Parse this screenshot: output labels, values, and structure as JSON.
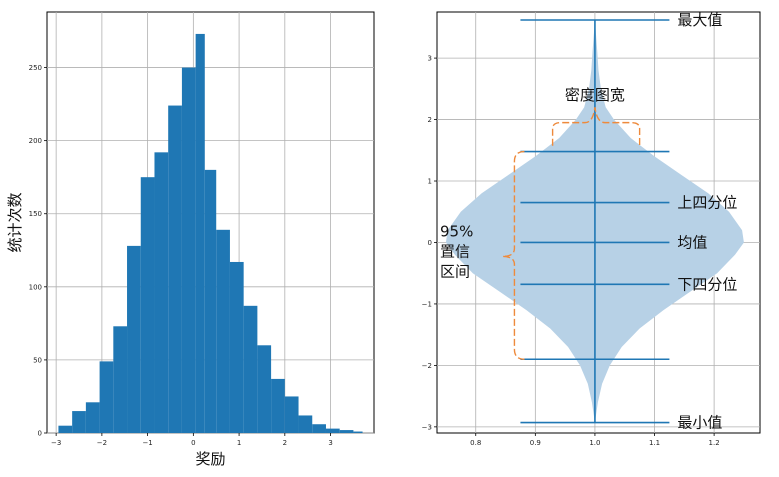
{
  "chart_data": [
    {
      "type": "bar",
      "subtype": "histogram",
      "xlabel": "奖励",
      "ylabel": "统计次数",
      "xlim": [
        -3.2,
        3.95
      ],
      "ylim": [
        0,
        288
      ],
      "xticks": [
        -3,
        -2,
        -1,
        0,
        1,
        2,
        3
      ],
      "yticks": [
        0,
        50,
        100,
        150,
        200,
        250
      ],
      "grid": true,
      "color": "#1f77b4",
      "bin_edges": [
        -2.95,
        -2.65,
        -2.35,
        -2.05,
        -1.75,
        -1.45,
        -1.15,
        -0.85,
        -0.55,
        -0.25,
        0.05,
        0.25,
        0.5,
        0.8,
        1.1,
        1.4,
        1.7,
        2.0,
        2.3,
        2.6,
        2.9,
        3.2,
        3.5,
        3.7
      ],
      "counts": [
        5,
        15,
        21,
        49,
        73,
        128,
        175,
        192,
        224,
        250,
        273,
        180,
        139,
        117,
        87,
        60,
        37,
        25,
        12,
        6,
        3,
        2,
        1
      ]
    },
    {
      "type": "violin",
      "xlim": [
        0.735,
        1.277
      ],
      "ylim": [
        -3.1,
        3.75
      ],
      "xticks": [
        0.8,
        0.9,
        1.0,
        1.1,
        1.2
      ],
      "yticks": [
        -3,
        -2,
        -1,
        0,
        1,
        2,
        3
      ],
      "grid": true,
      "position": 1.0,
      "line_color": "#1f77b4",
      "fill_color": "#b7d1e6",
      "bracket_color": "#ee8a3c",
      "whisker_halfwidth": 0.125,
      "stats": {
        "max": 3.62,
        "ci_upper": 1.48,
        "q3": 0.65,
        "mean": 0.0,
        "q1": -0.68,
        "ci_lower": -1.9,
        "min": -2.93
      },
      "density_profile": {
        "y": [
          -2.93,
          -2.6,
          -2.3,
          -2.0,
          -1.7,
          -1.4,
          -1.1,
          -0.8,
          -0.5,
          -0.2,
          0.0,
          0.2,
          0.5,
          0.8,
          1.1,
          1.4,
          1.7,
          2.0,
          2.2,
          2.5,
          2.8,
          3.1,
          3.62
        ],
        "halfwidth": [
          0.0,
          0.005,
          0.012,
          0.025,
          0.045,
          0.075,
          0.115,
          0.16,
          0.205,
          0.235,
          0.25,
          0.247,
          0.225,
          0.19,
          0.145,
          0.1,
          0.06,
          0.032,
          0.018,
          0.01,
          0.006,
          0.004,
          0.0
        ]
      },
      "annotations": {
        "max": "最大值",
        "q3": "上四分位",
        "mean": "均值",
        "q1": "下四分位",
        "min": "最小值",
        "density": "密度图宽",
        "ci_line1": "95%",
        "ci_line2": "置信",
        "ci_line3": "区间"
      }
    }
  ]
}
